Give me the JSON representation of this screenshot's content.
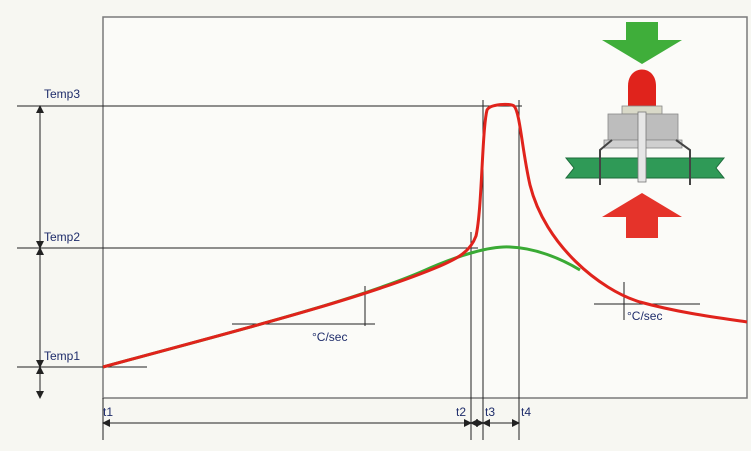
{
  "labels": {
    "temp3": "Temp3",
    "temp2": "Temp2",
    "temp1": "Temp1",
    "t1": "t1",
    "t2": "t2",
    "t3": "t3",
    "t4": "t4",
    "slope_left": "°C/sec",
    "slope_right": "°C/sec"
  },
  "colors": {
    "profile": "#e0231c",
    "baseline": "#3aaa35",
    "board": "#2f9a57",
    "arrow_top": "#3fae3a",
    "arrow_bottom": "#e5332a",
    "led": "#e0231c",
    "frame": "#7a7a7a"
  },
  "icons": {
    "top_arrow": "down-arrow-icon",
    "bottom_arrow": "up-arrow-icon",
    "component": "through-hole-led-on-pcb-icon"
  }
}
